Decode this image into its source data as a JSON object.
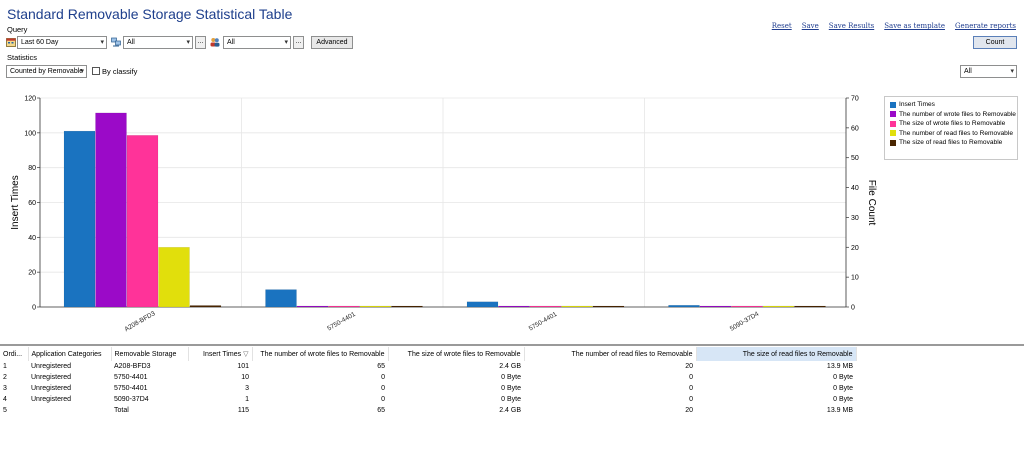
{
  "title": "Standard Removable Storage Statistical Table",
  "query_label": "Query",
  "statistics_label": "Statistics",
  "links": [
    "Reset",
    "Save",
    "Save Results",
    "Save as template",
    "Generate reports"
  ],
  "query": {
    "date_range": "Last 60 Day",
    "computer_filter": "All",
    "user_filter": "All",
    "browse_label": "...",
    "advanced_label": "Advanced",
    "count_label": "Count"
  },
  "statistics": {
    "group_by": "Counted by Removable",
    "by_classify_label": "By classify",
    "right_filter": "All"
  },
  "chart_data": {
    "type": "bar",
    "categories": [
      "A208-BFD3",
      "5750-4401",
      "5750-4401",
      "5090-37D4"
    ],
    "ylabel": "Insert Times",
    "y2label": "File Count",
    "ylim": [
      0,
      120
    ],
    "y2lim": [
      0,
      70
    ],
    "yticks": [
      "0",
      "20",
      "40",
      "60",
      "80",
      "100",
      "120"
    ],
    "y2ticks": [
      "0",
      "10",
      "20",
      "30",
      "40",
      "50",
      "60",
      "70"
    ],
    "grid": true,
    "legend_position": "right",
    "series": [
      {
        "name": "Insert Times",
        "values": [
          101,
          10,
          3,
          1
        ],
        "axis": "left",
        "color": "#1a73c0"
      },
      {
        "name": "The number of wrote files to Removable",
        "values": [
          65,
          0,
          0,
          0
        ],
        "axis": "right",
        "color": "#9b0ac8"
      },
      {
        "name": "The size of wrote files to Removable",
        "values": [
          57.5,
          0,
          0,
          0
        ],
        "axis": "right",
        "color": "#ff3399"
      },
      {
        "name": "The number of read files to Removable",
        "values": [
          20,
          0,
          0,
          0
        ],
        "axis": "right",
        "color": "#e1df0c"
      },
      {
        "name": "The size of read files to Removable",
        "values": [
          0.5,
          0,
          0,
          0
        ],
        "axis": "right",
        "color": "#4a2600"
      }
    ]
  },
  "table": {
    "columns": [
      "Ordi...",
      "Application Categories",
      "Removable Storage",
      "Insert Times",
      "The number of wrote files to Removable",
      "The size of wrote files to Removable",
      "The number of read files to Removable",
      "The size of read files to Removable"
    ],
    "rows": [
      [
        "1",
        "Unregistered",
        "A208-BFD3",
        "101",
        "65",
        "2.4 GB",
        "20",
        "13.9 MB"
      ],
      [
        "2",
        "Unregistered",
        "5750-4401",
        "10",
        "0",
        "0 Byte",
        "0",
        "0 Byte"
      ],
      [
        "3",
        "Unregistered",
        "5750-4401",
        "3",
        "0",
        "0 Byte",
        "0",
        "0 Byte"
      ],
      [
        "4",
        "Unregistered",
        "5090-37D4",
        "1",
        "0",
        "0 Byte",
        "0",
        "0 Byte"
      ],
      [
        "5",
        "",
        "Total",
        "115",
        "65",
        "2.4 GB",
        "20",
        "13.9 MB"
      ]
    ]
  }
}
